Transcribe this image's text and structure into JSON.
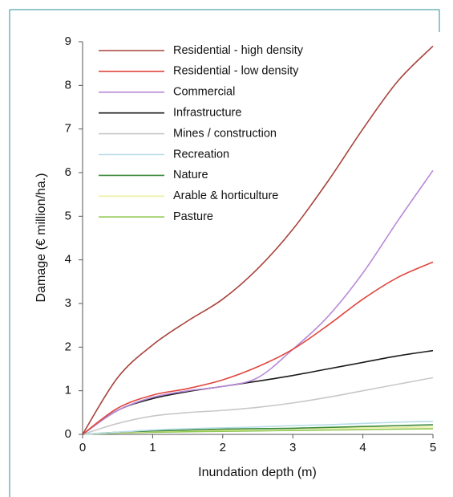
{
  "chart_data": {
    "type": "line",
    "xlabel": "Inundation depth (m)",
    "ylabel": "Damage (€ million/ha.)",
    "x": [
      0,
      0.5,
      1,
      1.5,
      2,
      2.5,
      3,
      3.5,
      4,
      4.5,
      5
    ],
    "xlim": [
      0,
      5
    ],
    "xticks": [
      0,
      1,
      2,
      3,
      4,
      5
    ],
    "ylim": [
      0,
      9
    ],
    "yticks": [
      0,
      1,
      2,
      3,
      4,
      5,
      6,
      7,
      8,
      9
    ],
    "legend": "upper left",
    "series": [
      {
        "name": "Residential - high density",
        "color": "#a8433c",
        "values": [
          0,
          1.3,
          2.05,
          2.6,
          3.1,
          3.8,
          4.7,
          5.8,
          7.0,
          8.1,
          8.9
        ]
      },
      {
        "name": "Residential - low density",
        "color": "#e0463c",
        "values": [
          0,
          0.6,
          0.9,
          1.05,
          1.25,
          1.55,
          1.95,
          2.5,
          3.1,
          3.6,
          3.95
        ]
      },
      {
        "name": "Commercial",
        "color": "#b88ad8",
        "values": [
          0,
          0.55,
          0.85,
          1.0,
          1.1,
          1.3,
          1.95,
          2.7,
          3.7,
          4.9,
          6.05
        ]
      },
      {
        "name": "Infrastructure",
        "color": "#1a1a1a",
        "values": [
          0,
          0.55,
          0.82,
          0.98,
          1.1,
          1.22,
          1.35,
          1.5,
          1.65,
          1.8,
          1.92
        ]
      },
      {
        "name": "Mines / construction",
        "color": "#c8c8c8",
        "values": [
          0,
          0.25,
          0.42,
          0.5,
          0.55,
          0.62,
          0.72,
          0.85,
          1.0,
          1.15,
          1.3
        ]
      },
      {
        "name": "Recreation",
        "color": "#b8dde8",
        "values": [
          0,
          0.05,
          0.1,
          0.13,
          0.15,
          0.17,
          0.2,
          0.22,
          0.25,
          0.28,
          0.3
        ]
      },
      {
        "name": "Nature",
        "color": "#3a8a3a",
        "values": [
          0,
          0.05,
          0.08,
          0.1,
          0.12,
          0.13,
          0.14,
          0.16,
          0.18,
          0.2,
          0.22
        ]
      },
      {
        "name": "Arable & horticulture",
        "color": "#eeeea0",
        "values": [
          0,
          0.04,
          0.07,
          0.09,
          0.1,
          0.12,
          0.13,
          0.14,
          0.15,
          0.16,
          0.17
        ]
      },
      {
        "name": "Pasture",
        "color": "#90c850",
        "values": [
          0,
          0.03,
          0.05,
          0.06,
          0.07,
          0.08,
          0.09,
          0.1,
          0.11,
          0.12,
          0.13
        ]
      }
    ]
  }
}
